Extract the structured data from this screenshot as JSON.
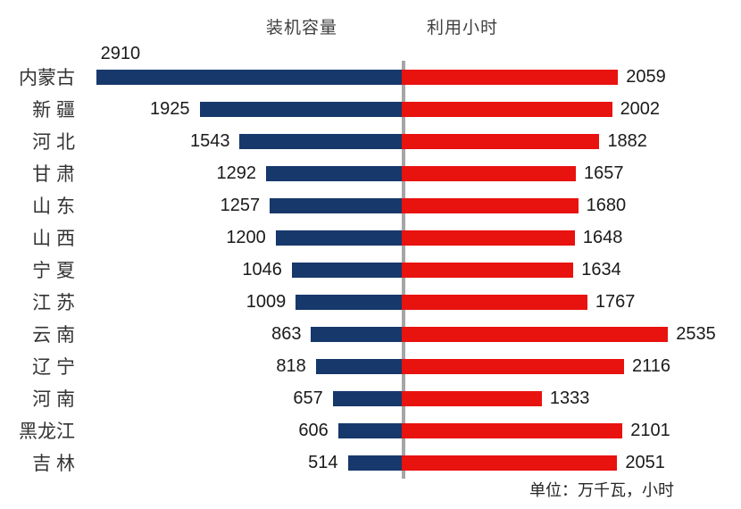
{
  "chart_data": {
    "type": "bar",
    "variant": "tornado",
    "legend_capacity": "装机容量",
    "legend_hours": "利用小时",
    "unit_note": "单位：万千瓦，小时",
    "axis_max_per_side": 3000,
    "grid": false,
    "divider_color": "#a6a6a6",
    "categories": [
      "内蒙古",
      "新 疆",
      "河 北",
      "甘 肃",
      "山 东",
      "山 西",
      "宁 夏",
      "江 苏",
      "云 南",
      "辽 宁",
      "河 南",
      "黑龙江",
      "吉 林"
    ],
    "series": [
      {
        "name": "装机容量",
        "side": "left",
        "color": "#17386b",
        "values": [
          2910,
          1925,
          1543,
          1292,
          1257,
          1200,
          1046,
          1009,
          863,
          818,
          657,
          606,
          514
        ]
      },
      {
        "name": "利用小时",
        "side": "right",
        "color": "#e8120f",
        "values": [
          2059,
          2002,
          1882,
          1657,
          1680,
          1648,
          1634,
          1767,
          2535,
          2116,
          1333,
          2101,
          2051
        ]
      }
    ],
    "first_row_capacity_label_position": "above"
  }
}
